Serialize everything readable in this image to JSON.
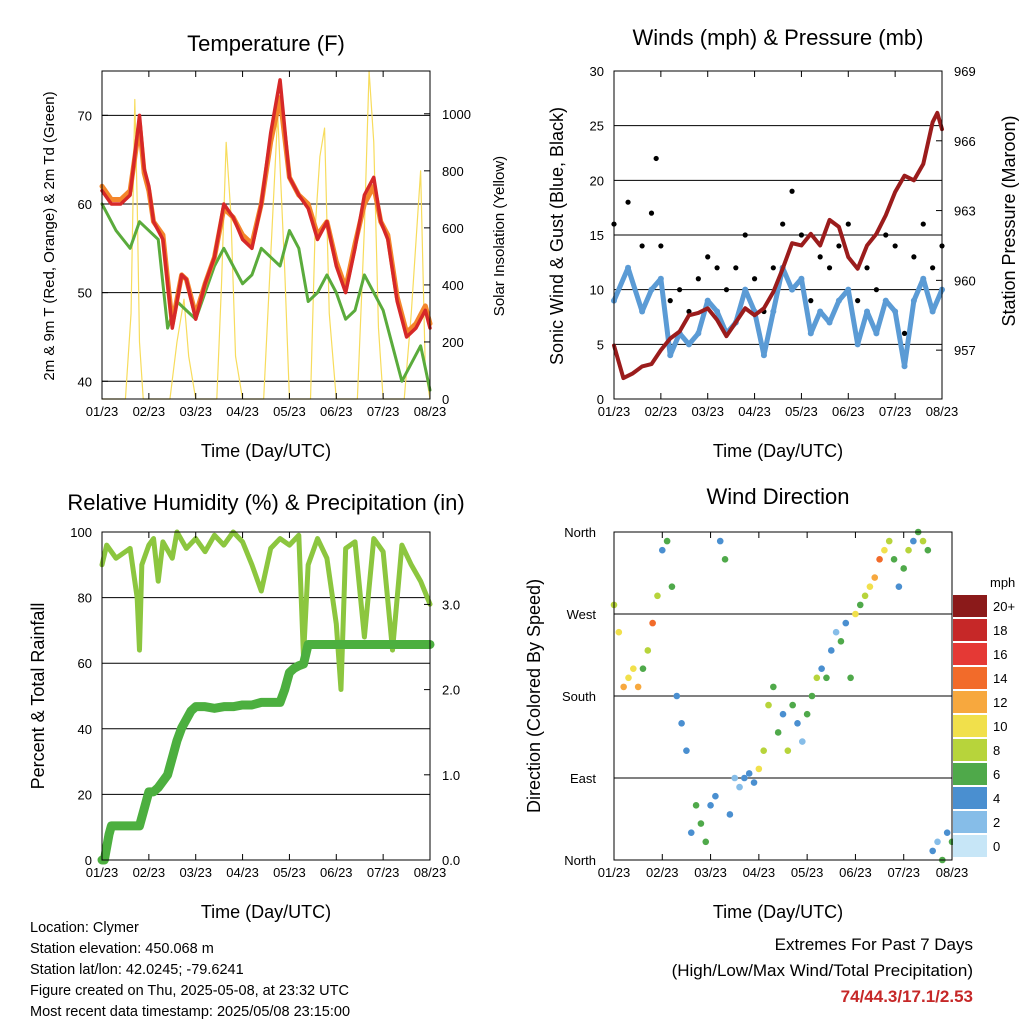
{
  "chart_data": [
    {
      "type": "line",
      "title": "Temperature (F)",
      "xlabel": "Time (Day/UTC)",
      "ylabel": "2m & 9m T (Red, Orange) & 2m Td (Green)",
      "y2label": "Solar Insolation (Yellow)",
      "x_ticks": [
        "01/23",
        "02/23",
        "03/23",
        "04/23",
        "05/23",
        "06/23",
        "07/23",
        "08/23"
      ],
      "y_ticks": [
        40,
        50,
        60,
        70
      ],
      "y2_ticks": [
        0,
        200,
        400,
        600,
        800,
        1000
      ],
      "ylim": [
        38,
        75
      ],
      "y2lim": [
        0,
        1150
      ],
      "xlim": [
        0,
        7
      ],
      "series": [
        {
          "name": "2m T",
          "color": "#d62828",
          "x": [
            0,
            0.2,
            0.4,
            0.6,
            0.8,
            0.9,
            1.0,
            1.1,
            1.3,
            1.5,
            1.7,
            1.8,
            2.0,
            2.2,
            2.4,
            2.6,
            2.8,
            3.0,
            3.2,
            3.4,
            3.6,
            3.8,
            4.0,
            4.2,
            4.4,
            4.6,
            4.8,
            5.0,
            5.2,
            5.4,
            5.6,
            5.8,
            5.95,
            6.1,
            6.3,
            6.5,
            6.7,
            6.9,
            7.0
          ],
          "y": [
            61.5,
            60,
            60,
            61,
            70,
            64,
            62,
            58,
            56,
            46,
            52,
            51.5,
            47,
            51,
            54,
            60,
            58.5,
            56,
            55,
            60,
            68,
            74,
            63,
            61,
            59.5,
            56,
            58,
            53,
            50,
            55,
            61,
            63,
            58,
            56,
            49,
            45,
            46,
            48,
            46
          ]
        },
        {
          "name": "9m T",
          "color": "#f4862b",
          "x": [
            0,
            0.2,
            0.4,
            0.6,
            0.8,
            0.9,
            1.0,
            1.1,
            1.3,
            1.5,
            1.7,
            1.8,
            2.0,
            2.2,
            2.4,
            2.6,
            2.8,
            3.0,
            3.2,
            3.4,
            3.6,
            3.8,
            4.0,
            4.2,
            4.4,
            4.6,
            4.8,
            5.0,
            5.2,
            5.4,
            5.6,
            5.8,
            5.95,
            6.1,
            6.3,
            6.5,
            6.7,
            6.9,
            7.0
          ],
          "y": [
            62,
            60.5,
            60.5,
            61.5,
            69,
            63.5,
            61.5,
            58,
            56.5,
            46.5,
            52,
            51.5,
            47.5,
            51,
            54,
            59.5,
            58.5,
            56.5,
            55.5,
            60,
            67,
            72,
            63,
            61,
            60,
            56.5,
            58,
            53.5,
            50.5,
            55.5,
            60,
            62,
            58,
            56.5,
            49.5,
            45.5,
            46.5,
            48.5,
            46.5
          ]
        },
        {
          "name": "2m Td",
          "color": "#5aab3c",
          "x": [
            0,
            0.3,
            0.6,
            0.8,
            1.0,
            1.2,
            1.4,
            1.6,
            1.8,
            2.0,
            2.2,
            2.4,
            2.6,
            2.8,
            3.0,
            3.2,
            3.4,
            3.6,
            3.8,
            4.0,
            4.2,
            4.4,
            4.6,
            4.8,
            5.0,
            5.2,
            5.4,
            5.6,
            5.8,
            6.0,
            6.2,
            6.4,
            6.6,
            6.8,
            7.0
          ],
          "y": [
            60,
            57,
            55,
            58,
            57,
            56,
            46,
            49,
            48,
            47,
            50,
            53,
            55,
            53,
            51,
            52,
            55,
            54,
            53,
            57,
            55,
            49,
            50,
            52,
            50,
            47,
            48,
            52,
            50,
            48,
            44,
            40,
            42,
            44,
            39
          ]
        },
        {
          "name": "Solar Insolation",
          "color": "#f7dc5c",
          "axis": "y2",
          "x": [
            0,
            0.5,
            0.62,
            0.7,
            0.75,
            0.8,
            0.88,
            1.0,
            1.45,
            1.6,
            1.75,
            1.85,
            2.0,
            2.45,
            2.55,
            2.65,
            2.75,
            2.85,
            3.0,
            3.45,
            3.6,
            3.75,
            3.9,
            4.0,
            4.45,
            4.55,
            4.65,
            4.75,
            4.85,
            5.0,
            5.45,
            5.6,
            5.7,
            5.8,
            5.9,
            6.0,
            6.45,
            6.6,
            6.8,
            6.9,
            7.0
          ],
          "y": [
            0,
            0,
            300,
            1050,
            700,
            200,
            0,
            0,
            0,
            200,
            350,
            150,
            0,
            0,
            400,
            900,
            650,
            150,
            0,
            0,
            500,
            1000,
            450,
            0,
            0,
            600,
            850,
            950,
            300,
            0,
            0,
            600,
            1150,
            900,
            250,
            0,
            0,
            300,
            800,
            100,
            0
          ]
        }
      ]
    },
    {
      "type": "scatter",
      "title": "Winds (mph) & Pressure (mb)",
      "xlabel": "Time (Day/UTC)",
      "ylabel": "Sonic Wind & Gust (Blue, Black)",
      "y2label": "Station Pressure (Maroon)",
      "x_ticks": [
        "01/23",
        "02/23",
        "03/23",
        "04/23",
        "05/23",
        "06/23",
        "07/23",
        "08/23"
      ],
      "y_ticks": [
        0,
        5,
        10,
        15,
        20,
        25,
        30
      ],
      "y2_ticks": [
        957,
        960,
        963,
        966,
        969
      ],
      "ylim": [
        0,
        30
      ],
      "y2lim": [
        954.9,
        969
      ],
      "xlim": [
        0,
        7
      ],
      "series": [
        {
          "name": "Sonic Wind",
          "color": "#5b9bd5",
          "x": [
            0,
            0.3,
            0.6,
            0.8,
            1.0,
            1.2,
            1.4,
            1.6,
            1.8,
            2.0,
            2.2,
            2.4,
            2.6,
            2.8,
            3.0,
            3.2,
            3.4,
            3.6,
            3.8,
            4.0,
            4.2,
            4.4,
            4.6,
            4.8,
            5.0,
            5.2,
            5.4,
            5.6,
            5.8,
            6.0,
            6.2,
            6.4,
            6.6,
            6.8,
            7.0
          ],
          "y": [
            9,
            12,
            8,
            10,
            11,
            4,
            6,
            5,
            6,
            9,
            8,
            6,
            7,
            10,
            8,
            4,
            8,
            12,
            10,
            11,
            6,
            8,
            7,
            9,
            10,
            5,
            8,
            6,
            9,
            8,
            3,
            9,
            11,
            8,
            10
          ]
        },
        {
          "name": "Gust",
          "color": "#000000",
          "x": [
            0,
            0.3,
            0.6,
            0.8,
            0.9,
            1.0,
            1.2,
            1.4,
            1.6,
            1.8,
            2.0,
            2.2,
            2.4,
            2.6,
            2.8,
            3.0,
            3.2,
            3.4,
            3.6,
            3.8,
            4.0,
            4.2,
            4.4,
            4.6,
            4.8,
            5.0,
            5.2,
            5.4,
            5.6,
            5.8,
            6.0,
            6.2,
            6.4,
            6.6,
            6.8,
            7.0
          ],
          "y": [
            16,
            18,
            14,
            17,
            22,
            14,
            9,
            10,
            8,
            11,
            13,
            12,
            10,
            12,
            15,
            11,
            8,
            12,
            16,
            19,
            15,
            9,
            13,
            12,
            14,
            16,
            9,
            12,
            10,
            15,
            14,
            6,
            13,
            16,
            12,
            14
          ]
        },
        {
          "name": "Station Pressure",
          "color": "#9b1c1c",
          "axis": "y2",
          "x": [
            0,
            0.2,
            0.4,
            0.6,
            0.8,
            1.0,
            1.2,
            1.4,
            1.6,
            1.8,
            2.0,
            2.2,
            2.4,
            2.6,
            2.8,
            3.0,
            3.2,
            3.4,
            3.6,
            3.8,
            4.0,
            4.2,
            4.4,
            4.6,
            4.8,
            5.0,
            5.2,
            5.4,
            5.6,
            5.8,
            6.0,
            6.2,
            6.4,
            6.6,
            6.8,
            6.9,
            7.0
          ],
          "y": [
            957.2,
            955.8,
            956,
            956.3,
            956.4,
            957,
            957.5,
            957.8,
            958.5,
            958.6,
            958.8,
            958.3,
            957.6,
            958.2,
            958.8,
            958.5,
            958.8,
            959.5,
            960.5,
            961.6,
            961.5,
            962,
            961.5,
            962.6,
            962.3,
            961,
            960.5,
            961.5,
            962,
            962.8,
            963.8,
            964.5,
            964.3,
            965,
            966.8,
            967.2,
            966.5
          ]
        }
      ]
    },
    {
      "type": "line",
      "title": "Relative Humidity (%) & Precipitation (in)",
      "xlabel": "Time (Day/UTC)",
      "ylabel": "Percent & Total Rainfall",
      "x_ticks": [
        "01/23",
        "02/23",
        "03/23",
        "04/23",
        "05/23",
        "06/23",
        "07/23",
        "08/23"
      ],
      "y_ticks": [
        0,
        20,
        40,
        60,
        80,
        100
      ],
      "y2_ticks": [
        "0.0",
        "1.0",
        "2.0",
        "3.0"
      ],
      "ylim": [
        0,
        100
      ],
      "y2lim": [
        0,
        3.85
      ],
      "xlim": [
        0,
        7
      ],
      "series": [
        {
          "name": "Relative Humidity",
          "color": "#8cc63f",
          "x": [
            0,
            0.1,
            0.3,
            0.6,
            0.75,
            0.8,
            0.85,
            1.0,
            1.1,
            1.2,
            1.3,
            1.5,
            1.6,
            1.8,
            2.0,
            2.2,
            2.4,
            2.6,
            2.8,
            3.0,
            3.2,
            3.4,
            3.6,
            3.8,
            4.0,
            4.2,
            4.3,
            4.4,
            4.6,
            4.8,
            5.0,
            5.1,
            5.2,
            5.4,
            5.6,
            5.8,
            6.0,
            6.2,
            6.4,
            6.6,
            6.8,
            7.0
          ],
          "y": [
            90,
            96,
            92,
            95,
            80,
            64,
            90,
            96,
            98,
            85,
            97,
            92,
            100,
            95,
            98,
            94,
            99,
            96,
            100,
            97,
            90,
            82,
            95,
            98,
            96,
            99,
            62,
            90,
            98,
            92,
            72,
            52,
            95,
            97,
            68,
            98,
            94,
            64,
            96,
            90,
            85,
            78
          ]
        },
        {
          "name": "Total Precipitation",
          "color": "#4caf3f",
          "axis": "y2",
          "x": [
            0,
            0.05,
            0.15,
            0.2,
            0.8,
            0.9,
            1.0,
            1.1,
            1.2,
            1.4,
            1.5,
            1.6,
            1.7,
            1.8,
            1.9,
            2.0,
            2.1,
            2.2,
            2.4,
            2.6,
            2.8,
            3.0,
            3.2,
            3.4,
            3.8,
            3.9,
            4.0,
            4.1,
            4.2,
            4.3,
            4.4,
            4.6,
            4.8,
            5.0,
            7.0
          ],
          "y": [
            0,
            0,
            0.3,
            0.4,
            0.4,
            0.6,
            0.8,
            0.8,
            0.85,
            1.0,
            1.2,
            1.4,
            1.55,
            1.65,
            1.75,
            1.8,
            1.8,
            1.8,
            1.78,
            1.8,
            1.8,
            1.82,
            1.82,
            1.85,
            1.85,
            2.0,
            2.2,
            2.25,
            2.28,
            2.3,
            2.53,
            2.53,
            2.53,
            2.53,
            2.53
          ]
        }
      ]
    },
    {
      "type": "scatter",
      "title": "Wind Direction",
      "xlabel": "Time (Day/UTC)",
      "ylabel": "Direction (Colored By Speed)",
      "x_ticks": [
        "01/23",
        "02/23",
        "03/23",
        "04/23",
        "05/23",
        "06/23",
        "07/23",
        "08/23"
      ],
      "y_tick_labels": [
        "North",
        "East",
        "South",
        "West",
        "North"
      ],
      "ylim": [
        0,
        360
      ],
      "xlim": [
        0,
        7
      ],
      "colorbar": {
        "title": "mph",
        "labels": [
          "20+",
          "18",
          "16",
          "14",
          "12",
          "10",
          "8",
          "6",
          "4",
          "2",
          "0"
        ],
        "colors": [
          "#8b1a1a",
          "#c62828",
          "#e53935",
          "#f26b2a",
          "#f7a83e",
          "#f1e04b",
          "#b7d43b",
          "#4fa94a",
          "#4a8fd0",
          "#86bde8",
          "#c7e6f7"
        ]
      },
      "points": {
        "x": [
          0,
          0.1,
          0.2,
          0.3,
          0.4,
          0.5,
          0.6,
          0.7,
          0.8,
          0.9,
          1.0,
          1.1,
          1.2,
          1.3,
          1.4,
          1.5,
          1.6,
          1.7,
          1.8,
          1.9,
          2.0,
          2.1,
          2.2,
          2.3,
          2.4,
          2.5,
          2.6,
          2.7,
          2.8,
          2.9,
          3.0,
          3.1,
          3.2,
          3.3,
          3.4,
          3.5,
          3.6,
          3.7,
          3.8,
          3.9,
          4.0,
          4.1,
          4.2,
          4.3,
          4.4,
          4.5,
          4.6,
          4.7,
          4.8,
          4.9,
          5.0,
          5.1,
          5.2,
          5.3,
          5.4,
          5.5,
          5.6,
          5.7,
          5.8,
          5.9,
          6.0,
          6.1,
          6.2,
          6.3,
          6.4,
          6.5,
          6.6,
          6.7,
          6.8,
          6.9,
          7.0
        ],
        "y": [
          280,
          250,
          190,
          200,
          210,
          190,
          210,
          230,
          260,
          290,
          340,
          350,
          300,
          180,
          150,
          120,
          30,
          60,
          40,
          20,
          60,
          70,
          350,
          330,
          50,
          90,
          80,
          90,
          95,
          85,
          100,
          120,
          170,
          190,
          140,
          160,
          120,
          170,
          150,
          130,
          160,
          180,
          200,
          210,
          200,
          230,
          250,
          240,
          260,
          200,
          270,
          280,
          290,
          300,
          310,
          330,
          340,
          350,
          330,
          300,
          320,
          340,
          350,
          360,
          350,
          340,
          10,
          20,
          0,
          30,
          20
        ],
        "speed": [
          8,
          10,
          12,
          10,
          9,
          12,
          6,
          8,
          14,
          8,
          4,
          6,
          6,
          4,
          3,
          4,
          3,
          5,
          6,
          6,
          4,
          3,
          4,
          5,
          3,
          2,
          2,
          4,
          3,
          4,
          10,
          8,
          8,
          6,
          5,
          4,
          8,
          6,
          4,
          2,
          6,
          6,
          8,
          4,
          6,
          3,
          2,
          6,
          4,
          6,
          10,
          6,
          8,
          10,
          12,
          14,
          10,
          8,
          6,
          4,
          6,
          8,
          4,
          6,
          8,
          6,
          4,
          2,
          6,
          4,
          6
        ]
      }
    }
  ],
  "info": {
    "location": "Location: Clymer",
    "elevation": "Station elevation: 450.068 m",
    "latlon": "Station lat/lon: 42.0245; -79.6241",
    "created": "Figure created on Thu, 2025-05-08, at 23:32 UTC",
    "recent": "Most recent data timestamp: 2025/05/08 23:15:00"
  },
  "extremes": {
    "heading": "Extremes For Past 7 Days",
    "subheading": "(High/Low/Max Wind/Total Precipitation)",
    "values": "74/44.3/17.1/2.53"
  }
}
